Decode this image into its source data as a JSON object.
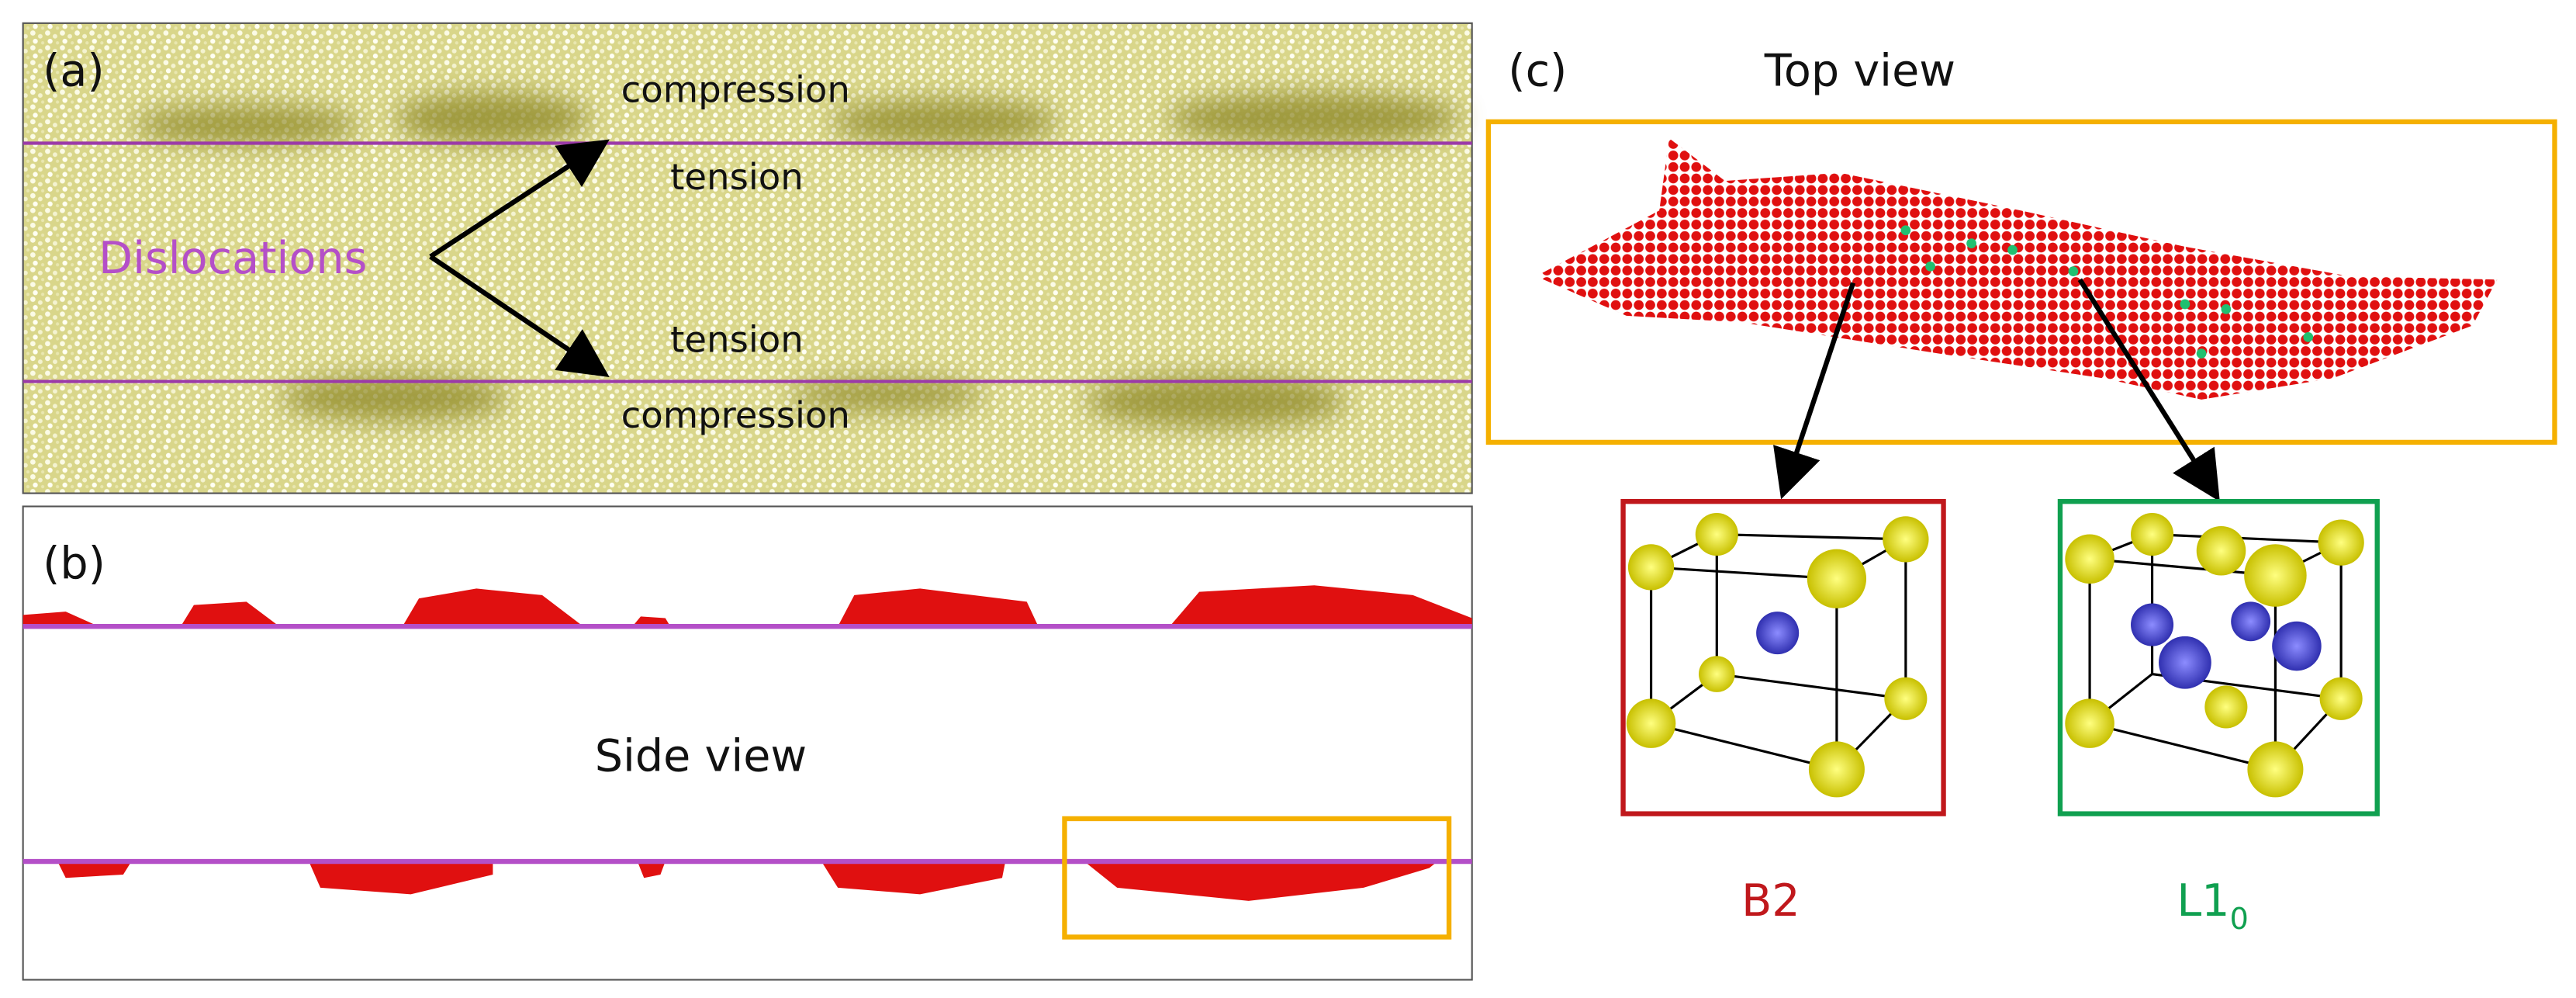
{
  "panels": {
    "a": {
      "label": "(a)",
      "annotations": [
        "compression",
        "tension",
        "tension",
        "compression"
      ],
      "dislocations": "Dislocations"
    },
    "b": {
      "label": "(b)",
      "caption": "Side view"
    },
    "c": {
      "label": "(c)",
      "caption": "Top view",
      "structures": [
        {
          "name": "B2"
        },
        {
          "name": "L1",
          "subscript": "0"
        }
      ]
    }
  }
}
